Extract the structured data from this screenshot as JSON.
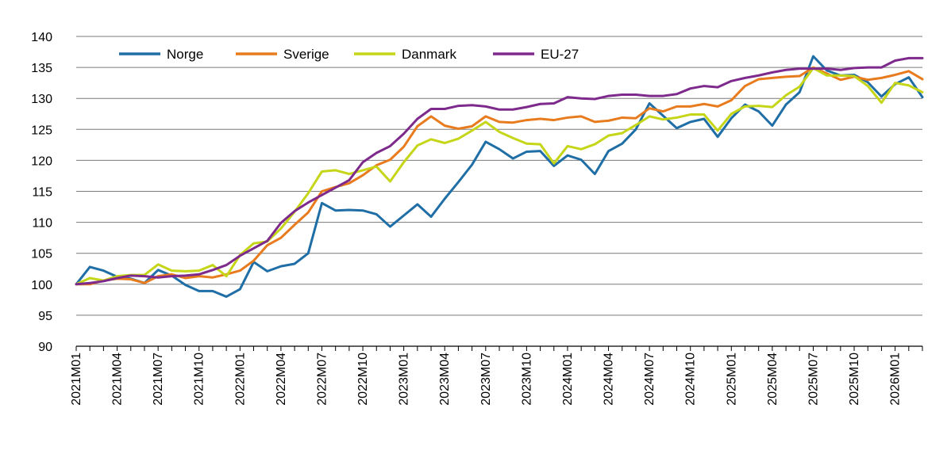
{
  "chart_data": {
    "type": "line",
    "title": "",
    "xlabel": "",
    "ylabel": "",
    "ylim": [
      90,
      140
    ],
    "y_ticks": [
      90,
      95,
      100,
      105,
      110,
      115,
      120,
      125,
      130,
      135,
      140
    ],
    "x_tick_labels": [
      "2021M01",
      "2021M04",
      "2021M07",
      "2021M10",
      "2022M01",
      "2022M04",
      "2022M07",
      "2022M10",
      "2023M01",
      "2023M04",
      "2023M07",
      "2023M10",
      "2024M01",
      "2024M04",
      "2024M07",
      "2024M10",
      "2025M01",
      "2025M04",
      "2025M07",
      "2025M10",
      "2026M01"
    ],
    "x_tick_every": 3,
    "grid": "horizontal",
    "legend_position": "top-left",
    "x": [
      "2021M01",
      "2021M02",
      "2021M03",
      "2021M04",
      "2021M05",
      "2021M06",
      "2021M07",
      "2021M08",
      "2021M09",
      "2021M10",
      "2021M11",
      "2021M12",
      "2022M01",
      "2022M02",
      "2022M03",
      "2022M04",
      "2022M05",
      "2022M06",
      "2022M07",
      "2022M08",
      "2022M09",
      "2022M10",
      "2022M11",
      "2022M12",
      "2023M01",
      "2023M02",
      "2023M03",
      "2023M04",
      "2023M05",
      "2023M06",
      "2023M07",
      "2023M08",
      "2023M09",
      "2023M10",
      "2023M11",
      "2023M12",
      "2024M01",
      "2024M02",
      "2024M03",
      "2024M04",
      "2024M05",
      "2024M06",
      "2024M07",
      "2024M08",
      "2024M09",
      "2024M10",
      "2024M11",
      "2024M12",
      "2025M01",
      "2025M02",
      "2025M03",
      "2025M04",
      "2025M05",
      "2025M06",
      "2025M07",
      "2025M08",
      "2025M09",
      "2025M10",
      "2025M11",
      "2025M12",
      "2026M01",
      "2026M02",
      "2026M03"
    ],
    "series": [
      {
        "name": "Norge",
        "color": "#1f6ea6",
        "values": [
          100.0,
          102.8,
          102.2,
          101.2,
          100.9,
          100.2,
          102.3,
          101.4,
          99.9,
          98.9,
          98.9,
          98.0,
          99.2,
          103.6,
          102.1,
          102.9,
          103.3,
          105.0,
          113.1,
          111.9,
          112.0,
          111.9,
          111.3,
          109.3,
          111.1,
          112.9,
          110.9,
          113.8,
          116.5,
          119.3,
          123.0,
          121.8,
          120.3,
          121.4,
          121.5,
          119.1,
          120.8,
          120.1,
          117.8,
          121.5,
          122.7,
          125.0,
          129.2,
          127.2,
          125.2,
          126.2,
          126.7,
          123.8,
          126.8,
          129.0,
          127.9,
          125.6,
          129.0,
          131.0,
          136.8,
          134.5,
          133.7,
          133.8,
          132.6,
          130.3,
          132.3,
          133.4,
          130.2
        ]
      },
      {
        "name": "Sverige",
        "color": "#e87b1e",
        "values": [
          100.0,
          100.0,
          100.6,
          100.9,
          100.8,
          100.2,
          101.3,
          101.6,
          101.0,
          101.3,
          101.1,
          101.6,
          102.2,
          103.8,
          106.3,
          107.5,
          109.6,
          111.6,
          115.0,
          115.7,
          116.3,
          117.6,
          119.2,
          120.1,
          122.2,
          125.5,
          127.1,
          125.6,
          125.1,
          125.5,
          127.1,
          126.2,
          126.1,
          126.5,
          126.7,
          126.5,
          126.9,
          127.1,
          126.2,
          126.4,
          126.9,
          126.8,
          128.4,
          127.9,
          128.7,
          128.7,
          129.1,
          128.7,
          129.7,
          132.0,
          133.1,
          133.3,
          133.5,
          133.6,
          135.0,
          134.0,
          133.0,
          133.5,
          133.0,
          133.3,
          133.8,
          134.4,
          133.1
        ]
      },
      {
        "name": "Danmark",
        "color": "#c5d517",
        "values": [
          100.0,
          101.0,
          100.6,
          101.3,
          101.5,
          101.5,
          103.2,
          102.2,
          102.1,
          102.2,
          103.1,
          101.3,
          104.7,
          106.6,
          106.9,
          109.0,
          111.7,
          114.7,
          118.2,
          118.4,
          117.8,
          118.4,
          119.0,
          116.6,
          119.7,
          122.4,
          123.4,
          122.8,
          123.5,
          124.8,
          126.2,
          124.6,
          123.6,
          122.7,
          122.6,
          119.5,
          122.3,
          121.8,
          122.6,
          124.0,
          124.4,
          125.7,
          127.1,
          126.6,
          126.9,
          127.4,
          127.4,
          124.8,
          127.5,
          128.7,
          128.8,
          128.6,
          130.5,
          131.9,
          134.9,
          133.7,
          133.7,
          133.6,
          132.0,
          129.3,
          132.5,
          132.1,
          131.0
        ]
      },
      {
        "name": "EU-27",
        "color": "#7d2a8c",
        "values": [
          100.0,
          100.2,
          100.5,
          101.0,
          101.4,
          101.3,
          101.1,
          101.3,
          101.4,
          101.6,
          102.3,
          103.1,
          104.6,
          105.8,
          107.0,
          109.9,
          111.8,
          113.2,
          114.4,
          115.6,
          116.8,
          119.7,
          121.2,
          122.3,
          124.3,
          126.7,
          128.3,
          128.3,
          128.8,
          128.9,
          128.7,
          128.2,
          128.2,
          128.6,
          129.1,
          129.2,
          130.2,
          130.0,
          129.9,
          130.4,
          130.6,
          130.6,
          130.4,
          130.4,
          130.7,
          131.6,
          132.0,
          131.8,
          132.8,
          133.3,
          133.7,
          134.2,
          134.6,
          134.8,
          134.8,
          134.8,
          134.6,
          134.9,
          135.0,
          135.0,
          136.1,
          136.5,
          136.5
        ]
      }
    ]
  }
}
